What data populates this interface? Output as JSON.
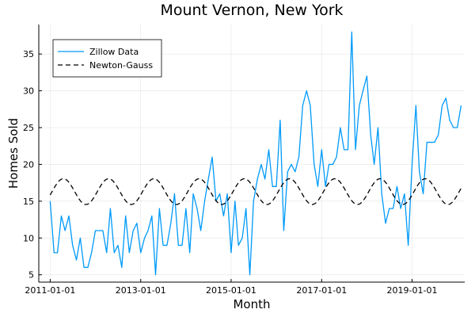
{
  "chart_data": {
    "type": "line",
    "title": "Mount Vernon, New York",
    "xlabel": "Month",
    "ylabel": "Homes Sold",
    "x_start": "2011-01-01",
    "x_step": "1 month",
    "x_ticks": [
      "2011-01-01",
      "2013-01-01",
      "2015-01-01",
      "2017-01-01",
      "2019-01-01"
    ],
    "y_ticks": [
      5,
      10,
      15,
      20,
      25,
      30,
      35
    ],
    "ylim": [
      4,
      39
    ],
    "xlim": [
      "2010-10-01",
      "2020-03-01"
    ],
    "grid": true,
    "legend_position": "top-left",
    "series": [
      {
        "name": "Zillow Data",
        "color": "#009AFA",
        "dash": "solid",
        "values": [
          15,
          8,
          8,
          13,
          11,
          13,
          9,
          7,
          10,
          6,
          6,
          8,
          11,
          11,
          11,
          8,
          14,
          8,
          9,
          6,
          13,
          8,
          11,
          12,
          8,
          10,
          11,
          13,
          5,
          14,
          9,
          9,
          12,
          16,
          9,
          9,
          14,
          8,
          16,
          14,
          11,
          15,
          18,
          21,
          15,
          16,
          13,
          16,
          8,
          15,
          9,
          10,
          14,
          5,
          15,
          18,
          20,
          18,
          22,
          17,
          17,
          26,
          11,
          19,
          20,
          19,
          21,
          28,
          30,
          28,
          20,
          17,
          22,
          17,
          20,
          20,
          21,
          25,
          22,
          22,
          38,
          22,
          28,
          30,
          32,
          24,
          20,
          25,
          16,
          12,
          14,
          14,
          17,
          14,
          16,
          9,
          20,
          28,
          19,
          16,
          23,
          23,
          23,
          24,
          28,
          29,
          26,
          25,
          25,
          28
        ]
      },
      {
        "name": "Newton-Gauss",
        "color": "#000000",
        "dash": "dashed",
        "model": {
          "mean": 16.3,
          "amplitude": 1.75,
          "period_months": 12,
          "phase_months": 3.5
        }
      }
    ]
  }
}
